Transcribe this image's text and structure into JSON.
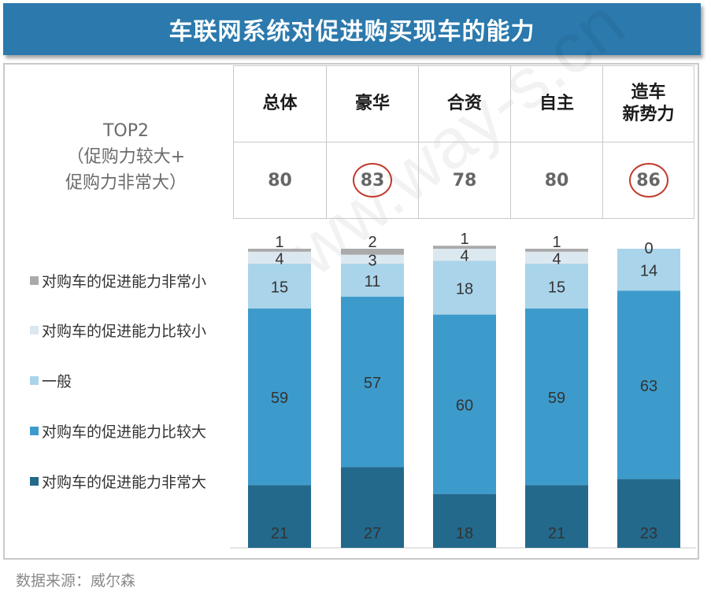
{
  "title": "车联网系统对促进购买现车的能力",
  "source": "数据来源：威尔森",
  "top2_label": [
    "TOP2",
    "（促购力较大+",
    "促购力非常大）"
  ],
  "groups": [
    {
      "name": "总体",
      "top2": "80",
      "highlight": false
    },
    {
      "name": "豪华",
      "top2": "83",
      "highlight": true
    },
    {
      "name": "合资",
      "top2": "78",
      "highlight": false
    },
    {
      "name": "自主",
      "top2": "80",
      "highlight": false
    },
    {
      "name": "造车\n新势力",
      "top2": "86",
      "highlight": true
    }
  ],
  "watermark": "www.way-s.cn",
  "colors": {
    "title_bg": "#2b79ad",
    "very_large": "#23698c",
    "relatively_large": "#3d9bcc",
    "average": "#aad4ea",
    "relatively_small": "#dce8f0",
    "very_small": "#aaaaaa",
    "highlight_circle": "#c0392b"
  },
  "chart_data": {
    "type": "bar",
    "stacked": true,
    "categories": [
      "总体",
      "豪华",
      "合资",
      "自主",
      "造车新势力"
    ],
    "series": [
      {
        "name": "对购车的促进能力非常大",
        "values": [
          21,
          27,
          18,
          21,
          23
        ]
      },
      {
        "name": "对购车的促进能力比较大",
        "values": [
          59,
          57,
          60,
          59,
          63
        ]
      },
      {
        "name": "一般",
        "values": [
          15,
          11,
          18,
          15,
          14
        ]
      },
      {
        "name": "对购车的促进能力比较小",
        "values": [
          4,
          3,
          4,
          4,
          0
        ]
      },
      {
        "name": "对购车的促进能力非常小",
        "values": [
          1,
          2,
          1,
          1,
          0
        ]
      }
    ],
    "legend_order": [
      "对购车的促进能力非常小",
      "对购车的促进能力比较小",
      "一般",
      "对购车的促进能力比较大",
      "对购车的促进能力非常大"
    ],
    "ylim": [
      0,
      100
    ]
  }
}
